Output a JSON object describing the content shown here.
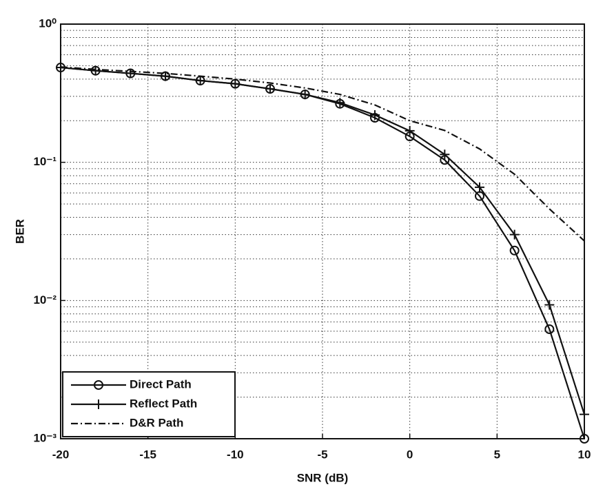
{
  "chart_data": {
    "type": "line",
    "xlabel": "SNR (dB)",
    "ylabel": "BER",
    "yscale": "log",
    "grid": true,
    "legend": "lower left",
    "x": [
      -20,
      -18,
      -16,
      -14,
      -12,
      -10,
      -8,
      -6,
      -4,
      -2,
      0,
      2,
      4,
      6,
      8,
      10
    ],
    "series": [
      {
        "name": "Direct Path",
        "color": "#111111",
        "style": "solid",
        "marker": "circle",
        "values": [
          0.485,
          0.46,
          0.44,
          0.42,
          0.39,
          0.37,
          0.34,
          0.31,
          0.265,
          0.21,
          0.154,
          0.104,
          0.057,
          0.023,
          0.0062,
          0.001
        ]
      },
      {
        "name": "Reflect Path",
        "color": "#111111",
        "style": "solid",
        "marker": "plus",
        "values": [
          0.485,
          0.46,
          0.44,
          0.42,
          0.39,
          0.37,
          0.34,
          0.31,
          0.27,
          0.22,
          0.169,
          0.114,
          0.066,
          0.03,
          0.0093,
          0.0015
        ]
      },
      {
        "name": "D&R Path",
        "color": "#111111",
        "style": "dashdot",
        "marker": "none",
        "values": [
          0.49,
          0.47,
          0.455,
          0.44,
          0.42,
          0.4,
          0.375,
          0.345,
          0.31,
          0.26,
          0.2,
          0.17,
          0.125,
          0.082,
          0.046,
          0.027
        ]
      }
    ],
    "xlim": [
      -20,
      10
    ],
    "xticks": [
      -20,
      -15,
      -10,
      -5,
      0,
      5,
      10
    ],
    "ylim": [
      0.001,
      1
    ],
    "yticks": [
      {
        "value": 0.001,
        "label": "10⁻³"
      },
      {
        "value": 0.01,
        "label": "10⁻²"
      },
      {
        "value": 0.1,
        "label": "10⁻¹"
      },
      {
        "value": 1,
        "label": "10⁰"
      }
    ]
  }
}
